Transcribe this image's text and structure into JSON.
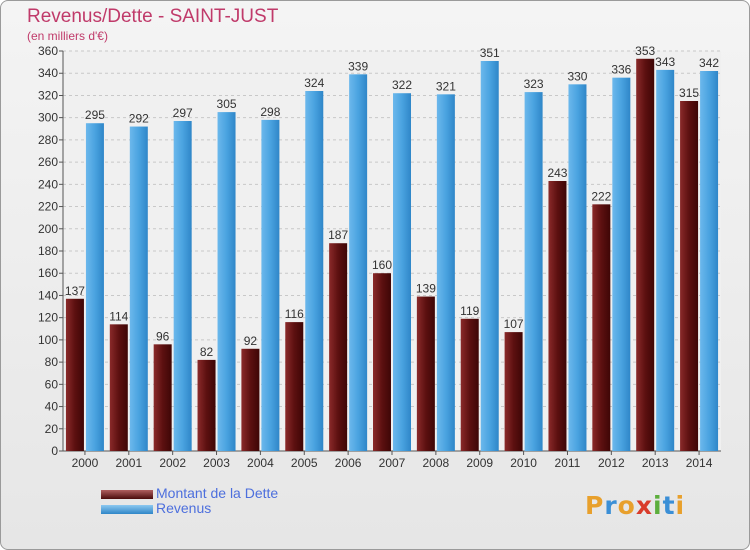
{
  "header": {
    "title": "Revenus/Dette - SAINT-JUST",
    "subtitle": "(en milliers d'€)"
  },
  "legend": {
    "debt_label": "Montant de la Dette",
    "revenue_label": "Revenus"
  },
  "logo": {
    "text": "Proxiti",
    "colors": [
      "#e8a02c",
      "#3b8fd6",
      "#e8a02c",
      "#d93c2b",
      "#5cae3c",
      "#3b8fd6",
      "#e8a02c"
    ]
  },
  "colors": {
    "debt": "#6e1a1a",
    "revenue": "#4aa3e0",
    "title": "#c03a6a",
    "legend_text": "#4d6fdd"
  },
  "chart_data": {
    "type": "bar",
    "categories": [
      "2000",
      "2001",
      "2002",
      "2003",
      "2004",
      "2005",
      "2006",
      "2007",
      "2008",
      "2009",
      "2010",
      "2011",
      "2012",
      "2013",
      "2014"
    ],
    "series": [
      {
        "name": "Montant de la Dette",
        "values": [
          137,
          114,
          96,
          82,
          92,
          116,
          187,
          160,
          139,
          119,
          107,
          243,
          222,
          353,
          315
        ]
      },
      {
        "name": "Revenus",
        "values": [
          295,
          292,
          297,
          305,
          298,
          324,
          339,
          322,
          321,
          351,
          323,
          330,
          336,
          343,
          342
        ]
      }
    ],
    "ylim": [
      0,
      360
    ],
    "ytick_step": 20,
    "grid": true
  }
}
